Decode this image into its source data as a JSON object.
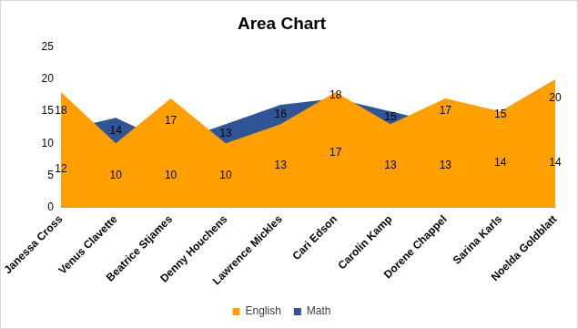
{
  "chart_data": {
    "type": "area",
    "title": "Area Chart",
    "categories": [
      "Janessa Cross",
      "Venus Clavette",
      "Beatrice Stjames",
      "Denny Houchens",
      "Lawrence Mickles",
      "Cari Edson",
      "Carolin Kamp",
      "Dorene Chappel",
      "Sarina Karls",
      "Noelda Goldblatt"
    ],
    "series": [
      {
        "name": "Math",
        "color": "#2f5597",
        "values": [
          12,
          14,
          10,
          13,
          16,
          17,
          15,
          13,
          14,
          14
        ]
      },
      {
        "name": "English",
        "color": "#ffa000",
        "values": [
          18,
          10,
          17,
          10,
          13,
          18,
          13,
          17,
          15,
          20
        ]
      }
    ],
    "ylim": [
      0,
      25
    ],
    "yticks": [
      0,
      5,
      10,
      15,
      20,
      25
    ],
    "grid": false,
    "legend": "bottom",
    "data_labels": true
  }
}
